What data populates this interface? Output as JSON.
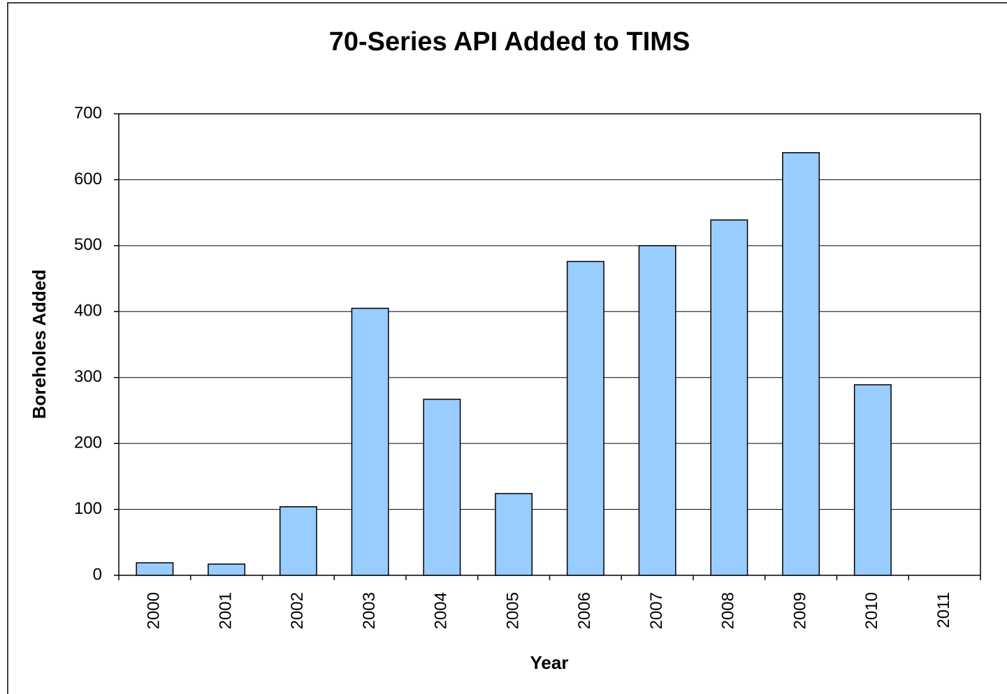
{
  "chart_data": {
    "type": "bar",
    "title": "70-Series API Added to TIMS",
    "x_label": "Year",
    "y_label": "Boreholes Added",
    "categories": [
      "2000",
      "2001",
      "2002",
      "2003",
      "2004",
      "2005",
      "2006",
      "2007",
      "2008",
      "2009",
      "2010",
      "2011"
    ],
    "values": [
      19,
      17,
      104,
      405,
      267,
      124,
      476,
      500,
      539,
      641,
      289,
      0
    ],
    "color": "#99ccff",
    "ylim": [
      0,
      700
    ],
    "yticks": [
      0,
      100,
      200,
      300,
      400,
      500,
      600,
      700
    ],
    "grid": true
  }
}
